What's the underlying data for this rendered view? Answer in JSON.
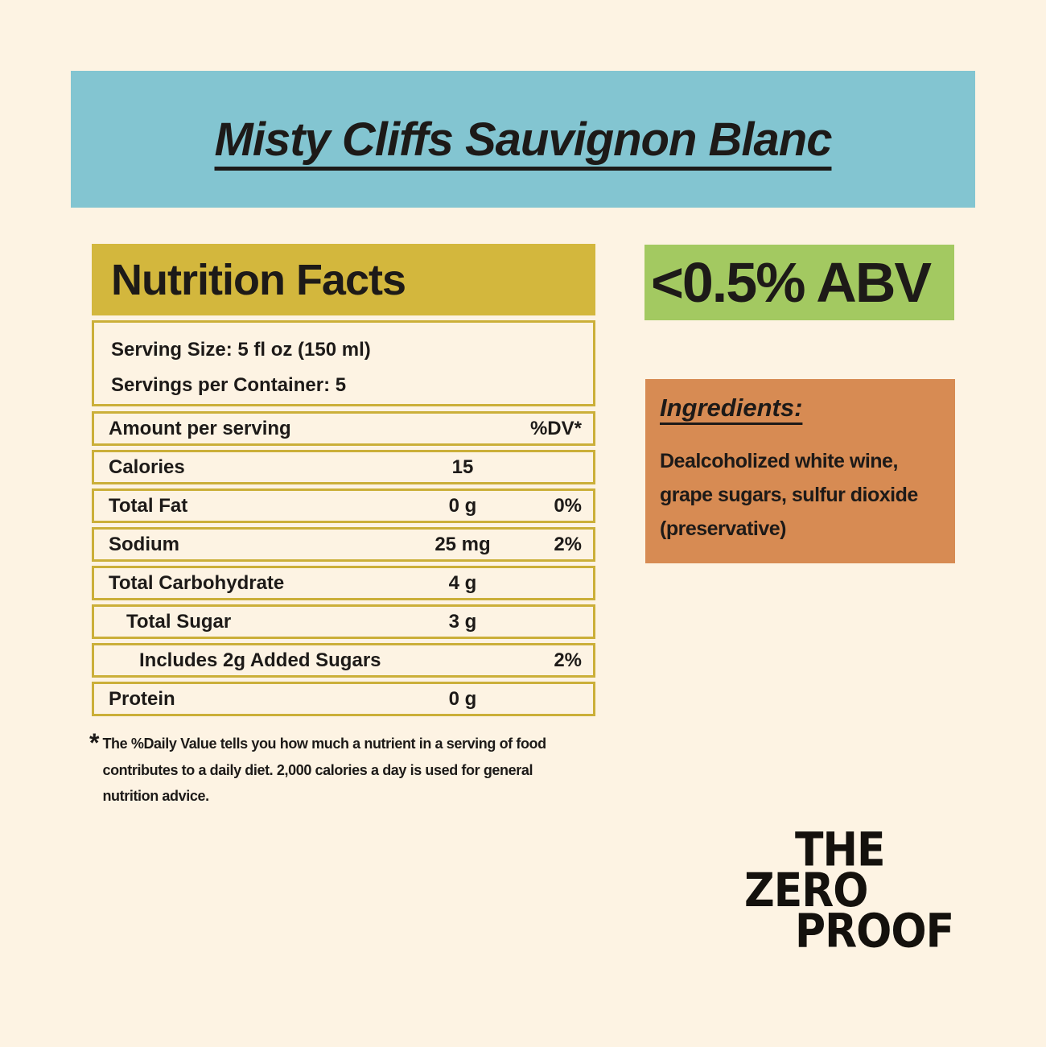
{
  "colors": {
    "background": "#FDF3E3",
    "banner_teal": "#83C5D1",
    "gold": "#D3B73D",
    "gold_border": "#CBAF39",
    "green": "#A3C961",
    "orange": "#D78B53",
    "text": "#1D1A18"
  },
  "banner": {
    "title": "Misty Cliffs Sauvignon Blanc"
  },
  "abv_badge": {
    "label": "<0.5% ABV"
  },
  "nutrition": {
    "title": "Nutrition Facts",
    "serving_size": "Serving Size: 5 fl oz (150 ml)",
    "servings_per_container": "Servings per Container: 5",
    "header_row": {
      "label": "Amount per serving",
      "dv": "%DV*"
    },
    "rows": [
      {
        "label": "Calories",
        "value": "15",
        "dv": ""
      },
      {
        "label": "Total Fat",
        "value": "0 g",
        "dv": "0%"
      },
      {
        "label": "Sodium",
        "value": "25 mg",
        "dv": "2%"
      },
      {
        "label": "Total Carbohydrate",
        "value": "4 g",
        "dv": ""
      },
      {
        "label": "Total Sugar",
        "value": "3 g",
        "dv": ""
      },
      {
        "label": "Includes 2g Added Sugars",
        "value": "",
        "dv": "2%"
      },
      {
        "label": "Protein",
        "value": "0 g",
        "dv": ""
      }
    ]
  },
  "footnote": {
    "marker": "*",
    "text": "The %Daily Value tells you how much a nutrient in a serving of food\ncontributes to a daily diet. 2,000 calories a day is used for general\nnutrition advice."
  },
  "ingredients": {
    "title": "Ingredients:",
    "body": "Dealcoholized white wine,\ngrape sugars, sulfur dioxide\n(preservative)"
  },
  "logo": {
    "line1": "THE",
    "line2": "ZERO",
    "line3": "PROOF"
  }
}
